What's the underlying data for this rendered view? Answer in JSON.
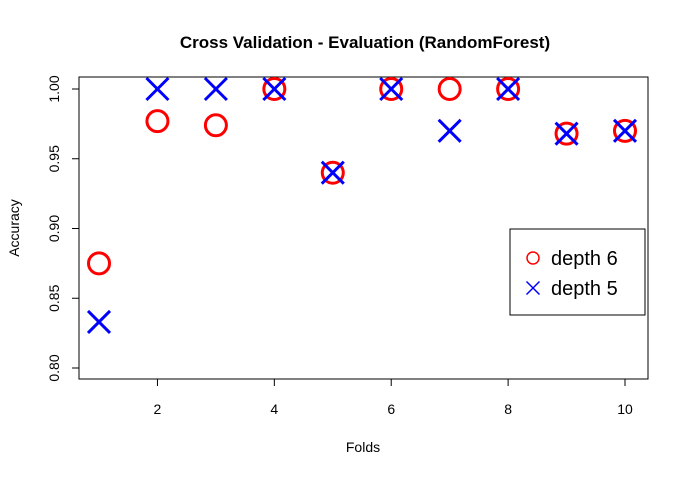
{
  "chart_data": {
    "type": "scatter",
    "title": "Cross Validation - Evaluation (RandomForest)",
    "xlabel": "Folds",
    "ylabel": "Accuracy",
    "xlim": [
      0.7,
      10.3
    ],
    "ylim": [
      0.8,
      1.0
    ],
    "x_ticks": [
      2,
      4,
      6,
      8,
      10
    ],
    "y_ticks": [
      0.8,
      0.85,
      0.9,
      0.95,
      1.0
    ],
    "x_tick_labels": [
      "2",
      "4",
      "6",
      "8",
      "10"
    ],
    "y_tick_labels": [
      "0.80",
      "0.85",
      "0.90",
      "0.95",
      "1.00"
    ],
    "x": [
      1,
      2,
      3,
      4,
      5,
      6,
      7,
      8,
      9,
      10
    ],
    "series": [
      {
        "name": "depth 6",
        "marker": "circle",
        "color": "#ff0000",
        "values": [
          0.875,
          0.977,
          0.974,
          1.0,
          0.94,
          1.0,
          1.0,
          1.0,
          0.968,
          0.97
        ]
      },
      {
        "name": "depth 5",
        "marker": "cross",
        "color": "#0000ff",
        "values": [
          0.833,
          1.0,
          1.0,
          1.0,
          0.94,
          1.0,
          0.97,
          1.0,
          0.968,
          0.97
        ]
      }
    ],
    "legend_position": "right",
    "grid": false
  }
}
